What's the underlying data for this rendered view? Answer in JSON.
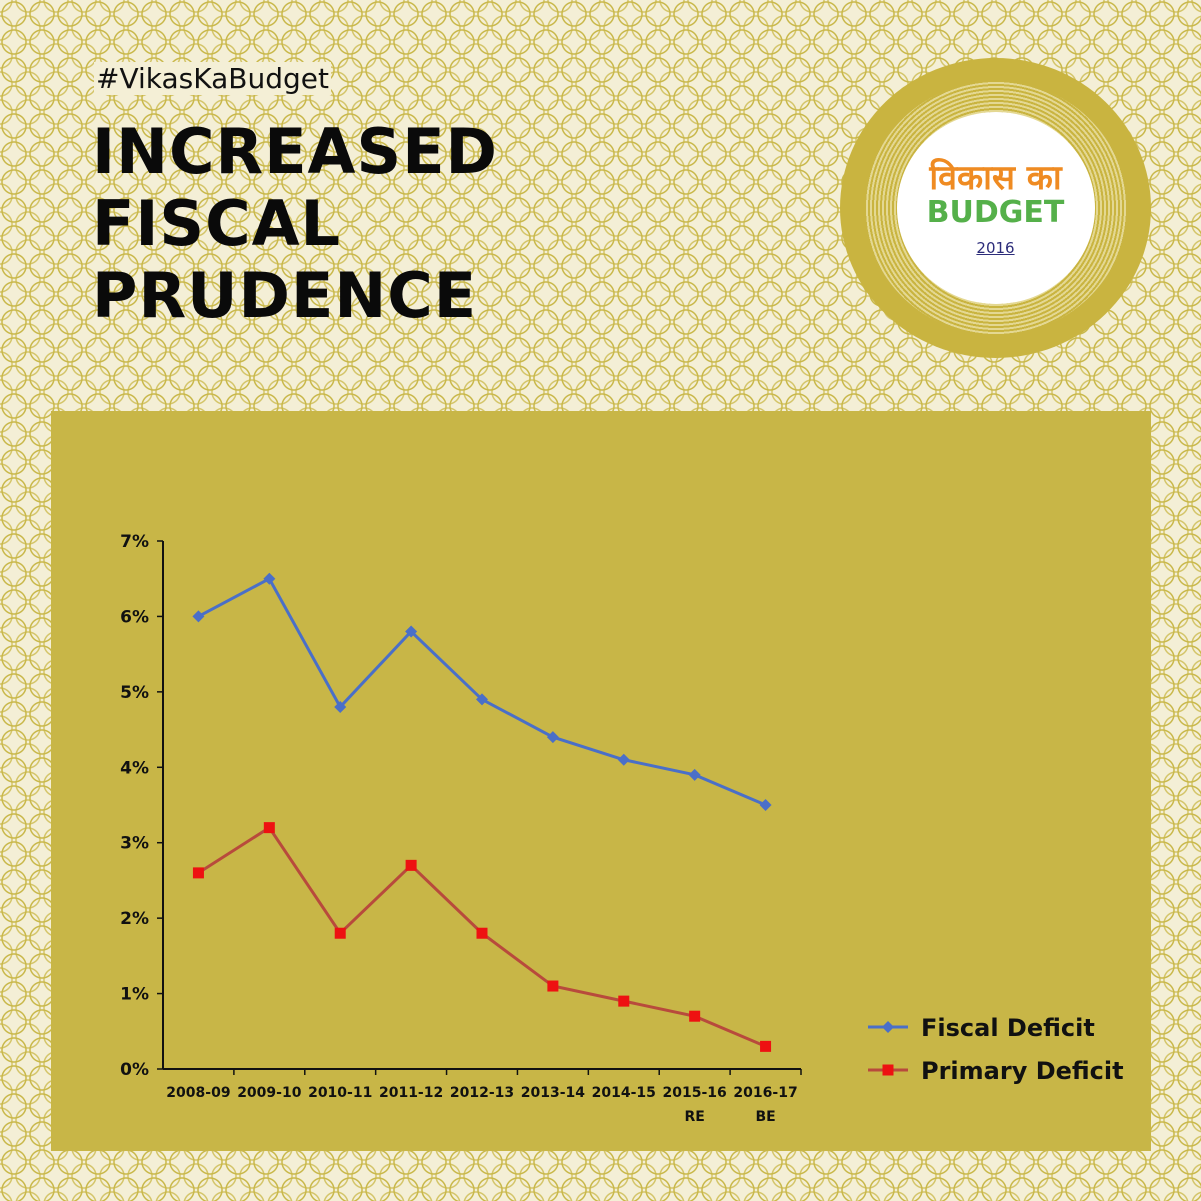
{
  "header": {
    "hashtag": "#VikasKaBudget",
    "title_lines": [
      "INCREASED",
      "FISCAL",
      "PRUDENCE"
    ]
  },
  "badge": {
    "hindi": "विकास का",
    "english": "BUDGET",
    "year": "2016"
  },
  "chart_data": {
    "type": "line",
    "categories": [
      "2008-09",
      "2009-10",
      "2010-11",
      "2011-12",
      "2012-13",
      "2013-14",
      "2014-15",
      "2015-16",
      "2016-17"
    ],
    "category_sublabels": [
      "",
      "",
      "",
      "",
      "",
      "",
      "",
      "RE",
      "BE"
    ],
    "series": [
      {
        "name": "Fiscal Deficit",
        "values": [
          6.0,
          6.5,
          4.8,
          5.8,
          4.9,
          4.4,
          4.1,
          3.9,
          3.5
        ],
        "color": "#4a6fc8",
        "marker": "diamond"
      },
      {
        "name": "Primary Deficit",
        "values": [
          2.6,
          3.2,
          1.8,
          2.7,
          1.8,
          1.1,
          0.9,
          0.7,
          0.3
        ],
        "color": "#b84a3c",
        "marker": "square",
        "marker_color": "#ee1111"
      }
    ],
    "y_ticks": [
      "0%",
      "1%",
      "2%",
      "3%",
      "4%",
      "5%",
      "6%",
      "7%"
    ],
    "ylim": [
      0,
      7
    ],
    "grid": false,
    "legend_position": "bottom-right"
  },
  "colors": {
    "panel": "#c8b647",
    "badge_outer": "#c9b440",
    "hindi_text": "#ef8b22",
    "english_text": "#55b04a"
  }
}
